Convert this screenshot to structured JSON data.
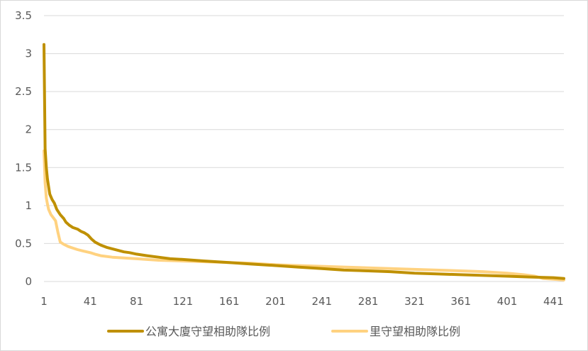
{
  "chart_data": {
    "type": "line",
    "title": "",
    "xlabel": "",
    "ylabel": "",
    "x_tick_labels": [
      "1",
      "41",
      "81",
      "121",
      "161",
      "201",
      "241",
      "281",
      "321",
      "361",
      "401",
      "441"
    ],
    "y_tick_labels": [
      "0",
      "0.5",
      "1",
      "1.5",
      "2",
      "2.5",
      "3",
      "3.5"
    ],
    "xlim": [
      1,
      450
    ],
    "ylim": [
      0,
      3.5
    ],
    "grid": "horizontal",
    "legend_position": "bottom",
    "series": [
      {
        "name": "公寓大廈守望相助隊比例",
        "color": "#bf9000",
        "points": [
          [
            1,
            3.12
          ],
          [
            2,
            1.75
          ],
          [
            3,
            1.5
          ],
          [
            4,
            1.35
          ],
          [
            5,
            1.25
          ],
          [
            6,
            1.15
          ],
          [
            8,
            1.08
          ],
          [
            10,
            1.03
          ],
          [
            12,
            0.95
          ],
          [
            15,
            0.88
          ],
          [
            18,
            0.83
          ],
          [
            20,
            0.78
          ],
          [
            23,
            0.74
          ],
          [
            26,
            0.71
          ],
          [
            30,
            0.69
          ],
          [
            33,
            0.66
          ],
          [
            36,
            0.64
          ],
          [
            39,
            0.61
          ],
          [
            42,
            0.56
          ],
          [
            45,
            0.52
          ],
          [
            50,
            0.48
          ],
          [
            55,
            0.45
          ],
          [
            60,
            0.43
          ],
          [
            65,
            0.41
          ],
          [
            70,
            0.39
          ],
          [
            75,
            0.38
          ],
          [
            81,
            0.36
          ],
          [
            90,
            0.34
          ],
          [
            100,
            0.32
          ],
          [
            110,
            0.3
          ],
          [
            121,
            0.29
          ],
          [
            140,
            0.27
          ],
          [
            161,
            0.25
          ],
          [
            180,
            0.23
          ],
          [
            201,
            0.21
          ],
          [
            220,
            0.19
          ],
          [
            241,
            0.17
          ],
          [
            260,
            0.15
          ],
          [
            281,
            0.14
          ],
          [
            300,
            0.13
          ],
          [
            321,
            0.11
          ],
          [
            340,
            0.1
          ],
          [
            361,
            0.09
          ],
          [
            380,
            0.08
          ],
          [
            401,
            0.07
          ],
          [
            420,
            0.06
          ],
          [
            441,
            0.05
          ],
          [
            450,
            0.04
          ]
        ]
      },
      {
        "name": "里守望相助隊比例",
        "color": "#ffd280",
        "points": [
          [
            1,
            1.72
          ],
          [
            2,
            1.3
          ],
          [
            3,
            1.1
          ],
          [
            4,
            1.02
          ],
          [
            5,
            0.95
          ],
          [
            7,
            0.88
          ],
          [
            9,
            0.84
          ],
          [
            11,
            0.8
          ],
          [
            13,
            0.65
          ],
          [
            15,
            0.52
          ],
          [
            18,
            0.49
          ],
          [
            22,
            0.46
          ],
          [
            26,
            0.44
          ],
          [
            30,
            0.42
          ],
          [
            35,
            0.4
          ],
          [
            41,
            0.38
          ],
          [
            45,
            0.36
          ],
          [
            50,
            0.34
          ],
          [
            60,
            0.32
          ],
          [
            70,
            0.31
          ],
          [
            81,
            0.3
          ],
          [
            100,
            0.28
          ],
          [
            121,
            0.27
          ],
          [
            140,
            0.26
          ],
          [
            161,
            0.25
          ],
          [
            180,
            0.24
          ],
          [
            201,
            0.22
          ],
          [
            220,
            0.21
          ],
          [
            241,
            0.2
          ],
          [
            260,
            0.19
          ],
          [
            281,
            0.18
          ],
          [
            300,
            0.17
          ],
          [
            321,
            0.16
          ],
          [
            340,
            0.15
          ],
          [
            361,
            0.14
          ],
          [
            380,
            0.13
          ],
          [
            401,
            0.11
          ],
          [
            415,
            0.09
          ],
          [
            425,
            0.07
          ],
          [
            432,
            0.04
          ],
          [
            441,
            0.03
          ],
          [
            450,
            0.02
          ]
        ]
      }
    ]
  }
}
